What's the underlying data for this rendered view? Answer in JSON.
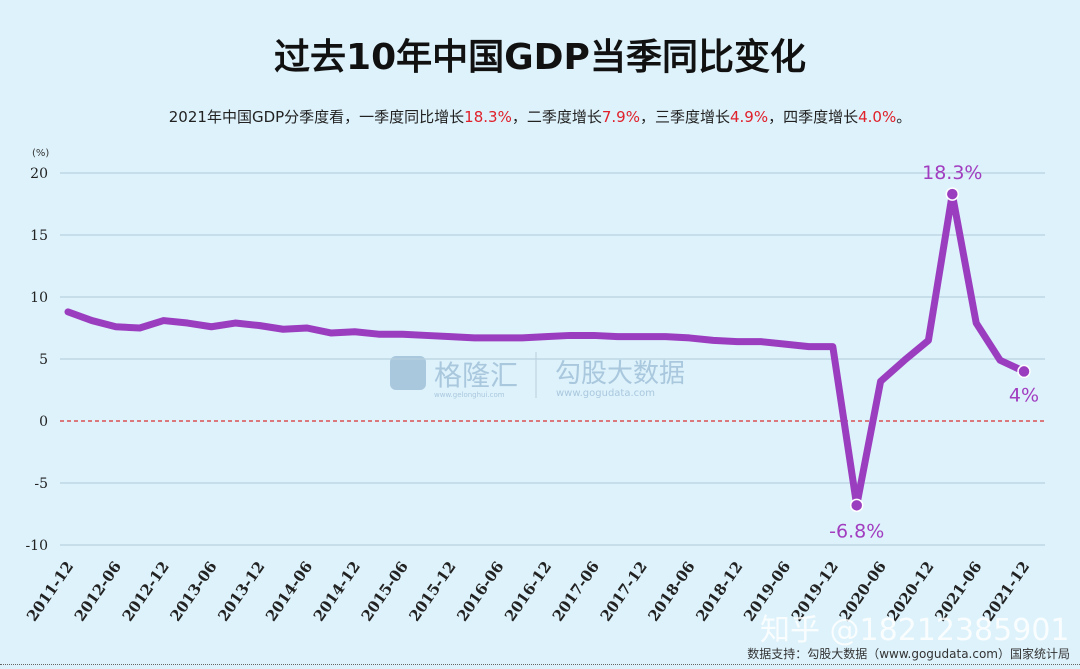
{
  "title": "过去10年中国GDP当季同比变化",
  "subtitle": {
    "prefix": "2021年中国GDP分季度看，一季度同比增长",
    "q1": "18.3%",
    "mid1": "，二季度增长",
    "q2": "7.9%",
    "mid2": "，三季度增长",
    "q3": "4.9%",
    "mid3": "，四季度增长",
    "q4": "4.0%",
    "suffix": "。"
  },
  "source": "数据支持：勾股大数据（www.gogudata.com）国家统计局",
  "watermarks": {
    "logo1": "格隆汇",
    "logo1_sub": "www.gelonghui.com",
    "logo2": "勾股大数据",
    "logo2_sub": "www.gogudata.com",
    "zhihu": "知乎 @18212385901"
  },
  "colors": {
    "line": "#9b3dbf",
    "zero_line": "#d93030",
    "background": "#ddf2fb",
    "highlight": "#e0202a"
  },
  "chart_data": {
    "type": "line",
    "title": "过去10年中国GDP当季同比变化",
    "ylabel": "(%)",
    "ylim": [
      -10,
      20
    ],
    "yticks": [
      -10,
      -5,
      0,
      5,
      10,
      15,
      20
    ],
    "grid": true,
    "x": [
      "2011-12",
      "2012-03",
      "2012-06",
      "2012-09",
      "2012-12",
      "2013-03",
      "2013-06",
      "2013-09",
      "2013-12",
      "2014-03",
      "2014-06",
      "2014-09",
      "2014-12",
      "2015-03",
      "2015-06",
      "2015-09",
      "2015-12",
      "2016-03",
      "2016-06",
      "2016-09",
      "2016-12",
      "2017-03",
      "2017-06",
      "2017-09",
      "2017-12",
      "2018-03",
      "2018-06",
      "2018-09",
      "2018-12",
      "2019-03",
      "2019-06",
      "2019-09",
      "2019-12",
      "2020-03",
      "2020-06",
      "2020-09",
      "2020-12",
      "2021-03",
      "2021-06",
      "2021-09",
      "2021-12"
    ],
    "xticks": [
      "2011-12",
      "2012-06",
      "2012-12",
      "2013-06",
      "2013-12",
      "2014-06",
      "2014-12",
      "2015-06",
      "2015-12",
      "2016-06",
      "2016-12",
      "2017-06",
      "2017-12",
      "2018-06",
      "2018-12",
      "2019-06",
      "2019-12",
      "2020-06",
      "2020-12",
      "2021-06",
      "2021-12"
    ],
    "values": [
      8.8,
      8.1,
      7.6,
      7.5,
      8.1,
      7.9,
      7.6,
      7.9,
      7.7,
      7.4,
      7.5,
      7.1,
      7.2,
      7.0,
      7.0,
      6.9,
      6.8,
      6.7,
      6.7,
      6.7,
      6.8,
      6.9,
      6.9,
      6.8,
      6.8,
      6.8,
      6.7,
      6.5,
      6.4,
      6.4,
      6.2,
      6.0,
      6.0,
      -6.8,
      3.2,
      4.9,
      6.5,
      18.3,
      7.9,
      4.9,
      4.0
    ],
    "annotations": [
      {
        "x": "2020-03",
        "label": "-6.8%"
      },
      {
        "x": "2021-03",
        "label": "18.3%"
      },
      {
        "x": "2021-12",
        "label": "4%"
      }
    ],
    "reference_line": 0
  }
}
